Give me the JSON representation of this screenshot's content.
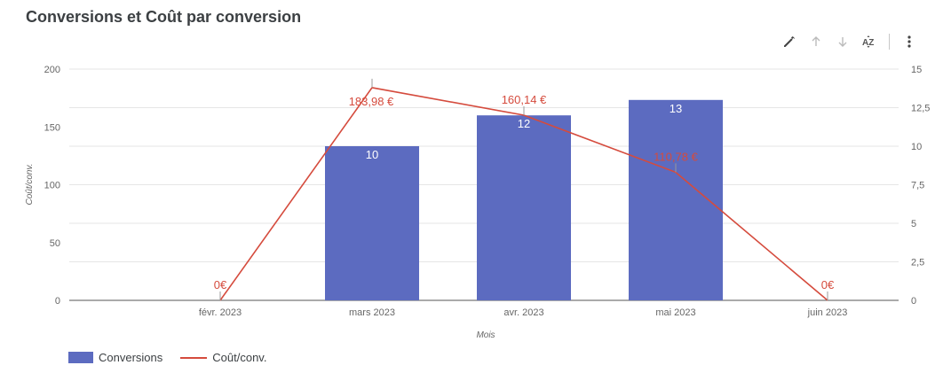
{
  "title": "Conversions et Coût par conversion",
  "toolbar": {
    "icons": [
      "edit-icon",
      "sort-ascending-icon",
      "sort-descending-icon",
      "sort-az-icon",
      "more-options-icon"
    ]
  },
  "colors": {
    "bars": "#5c6bc0",
    "line": "#d54b3d",
    "grid": "#e6e6e6",
    "axis_text": "#666666"
  },
  "legend": {
    "bars_label": "Conversions",
    "line_label": "Coût/conv."
  },
  "chart_data": {
    "type": "bar",
    "title": "Conversions et Coût par conversion",
    "xlabel": "Mois",
    "ylabel_left": "Coût/conv.",
    "ylabel_right": "",
    "categories": [
      "févr. 2023",
      "mars 2023",
      "avr. 2023",
      "mai 2023",
      "juin 2023"
    ],
    "left_axis": {
      "ylim": [
        0,
        200
      ],
      "ticks": [
        "0",
        "50",
        "100",
        "150",
        "200"
      ],
      "tick_values": [
        0,
        50,
        100,
        150,
        200
      ]
    },
    "right_axis": {
      "ylim": [
        0,
        15
      ],
      "ticks": [
        "0",
        "2,5",
        "5",
        "7,5",
        "10",
        "12,5",
        "15"
      ],
      "tick_values": [
        0,
        2.5,
        5,
        7.5,
        10,
        12.5,
        15
      ]
    },
    "series": [
      {
        "name": "Conversions",
        "type": "bar",
        "axis": "right",
        "values": [
          0,
          10,
          12,
          13,
          0
        ],
        "labels": [
          "",
          "10",
          "12",
          "13",
          ""
        ]
      },
      {
        "name": "Coût/conv.",
        "type": "line",
        "axis": "left",
        "values": [
          0,
          183.98,
          160.14,
          110.78,
          0
        ],
        "labels": [
          "0€",
          "183,98 €",
          "160,14 €",
          "110,78 €",
          "0€"
        ]
      }
    ],
    "grid": true,
    "legend_position": "bottom-left"
  }
}
